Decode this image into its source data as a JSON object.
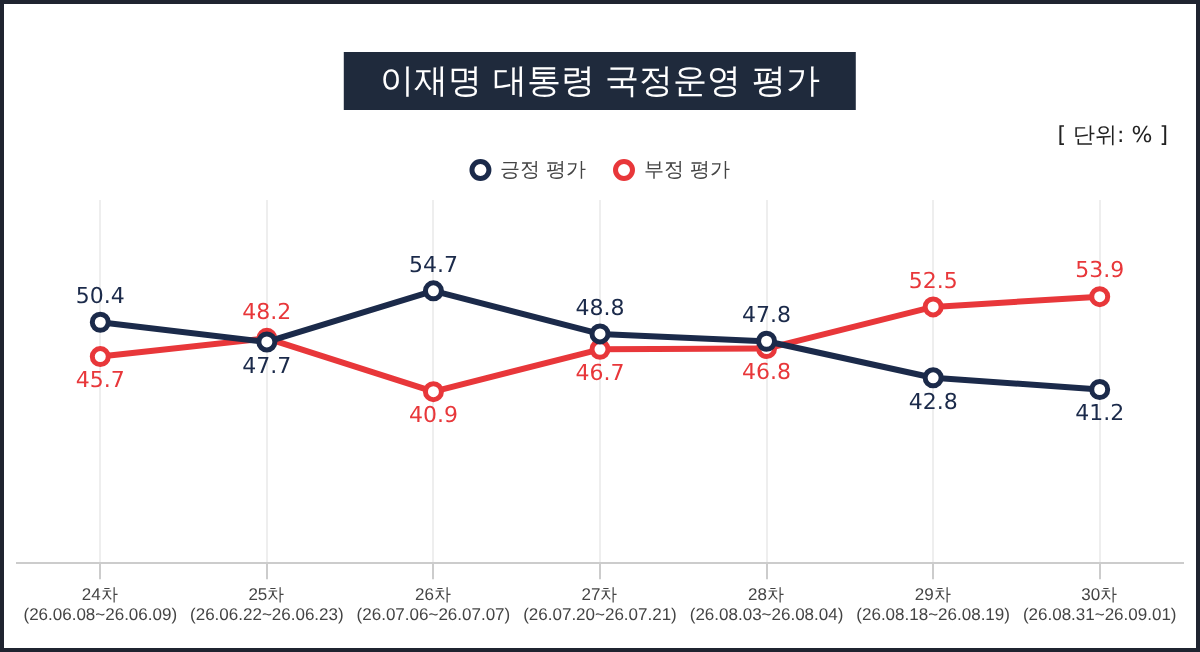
{
  "chart_data": {
    "type": "line",
    "title": "이재명 대통령 국정운영 평가",
    "annotations": [
      "[ 단위: % ]"
    ],
    "categories": [
      "24차\n(26.06.08~26.06.09)",
      "25차\n(26.06.22~26.06.23)",
      "26차\n(26.07.06~26.07.07)",
      "27차\n(26.07.20~26.07.21)",
      "28차\n(26.08.03~26.08.04)",
      "29차\n(26.08.18~26.08.19)",
      "30차\n(26.08.31~26.09.01)"
    ],
    "series": [
      {
        "name": "긍정 평가",
        "color": "#1b2a4a",
        "values": [
          50.4,
          47.7,
          54.7,
          48.8,
          47.8,
          42.8,
          41.2
        ]
      },
      {
        "name": "부정 평가",
        "color": "#e8373a",
        "values": [
          45.7,
          48.2,
          40.9,
          46.7,
          46.8,
          52.5,
          53.9
        ]
      }
    ],
    "data_labels": true,
    "legend": "top",
    "grid": "x",
    "marker": "circle",
    "line_style": "solid",
    "tick_labels": "x"
  }
}
